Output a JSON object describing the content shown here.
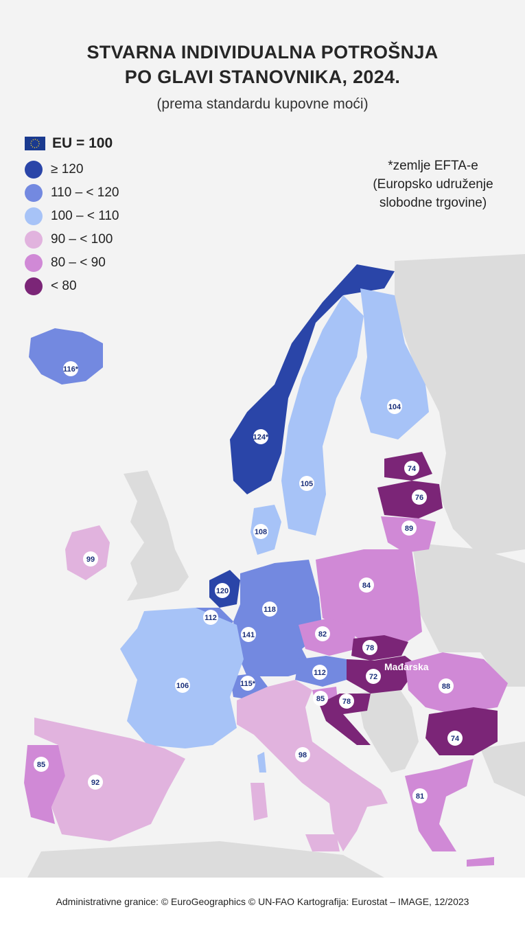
{
  "title_line1": "STVARNA INDIVIDUALNA POTROŠNJA",
  "title_line2": "PO GLAVI STANOVNIKA, 2024.",
  "subtitle": "(prema standardu kupovne moći)",
  "legend": {
    "reference": "EU = 100",
    "items": [
      {
        "label": "≥ 120",
        "color": "#2a45a8"
      },
      {
        "label": "110 – < 120",
        "color": "#7389e0"
      },
      {
        "label": "100 – < 110",
        "color": "#a7c3f7"
      },
      {
        "label": "90 – < 100",
        "color": "#e1b3de"
      },
      {
        "label": "80 – < 90",
        "color": "#d089d6"
      },
      {
        "label": "< 80",
        "color": "#7b2577"
      }
    ]
  },
  "note": [
    "*zemlje EFTA-e",
    "(Europsko udruženje",
    "slobodne trgovine)"
  ],
  "country_label": "Mađarska",
  "countries": [
    {
      "name": "Iceland",
      "value": "116*"
    },
    {
      "name": "Norway",
      "value": "124*"
    },
    {
      "name": "Finland",
      "value": "104"
    },
    {
      "name": "Sweden",
      "value": "105"
    },
    {
      "name": "Estonia",
      "value": "74"
    },
    {
      "name": "Latvia",
      "value": "76"
    },
    {
      "name": "Lithuania",
      "value": "89"
    },
    {
      "name": "Denmark",
      "value": "108"
    },
    {
      "name": "Ireland",
      "value": "99"
    },
    {
      "name": "Netherlands",
      "value": "120"
    },
    {
      "name": "Belgium",
      "value": "112"
    },
    {
      "name": "Luxembourg",
      "value": "141"
    },
    {
      "name": "Germany",
      "value": "118"
    },
    {
      "name": "Poland",
      "value": "84"
    },
    {
      "name": "Czechia",
      "value": "82"
    },
    {
      "name": "Slovakia",
      "value": "78"
    },
    {
      "name": "Hungary",
      "value": "72"
    },
    {
      "name": "Austria",
      "value": "112"
    },
    {
      "name": "Switzerland",
      "value": "115*"
    },
    {
      "name": "Slovenia",
      "value": "85"
    },
    {
      "name": "Croatia",
      "value": "78"
    },
    {
      "name": "Romania",
      "value": "88"
    },
    {
      "name": "Bulgaria",
      "value": "74"
    },
    {
      "name": "France",
      "value": "106"
    },
    {
      "name": "Italy",
      "value": "98"
    },
    {
      "name": "Spain",
      "value": "92"
    },
    {
      "name": "Portugal",
      "value": "85"
    },
    {
      "name": "Greece",
      "value": "81"
    }
  ],
  "footer": "Administrativne granice: © EuroGeographics © UN-FAO Kartografija: Eurostat – IMAGE, 12/2023"
}
